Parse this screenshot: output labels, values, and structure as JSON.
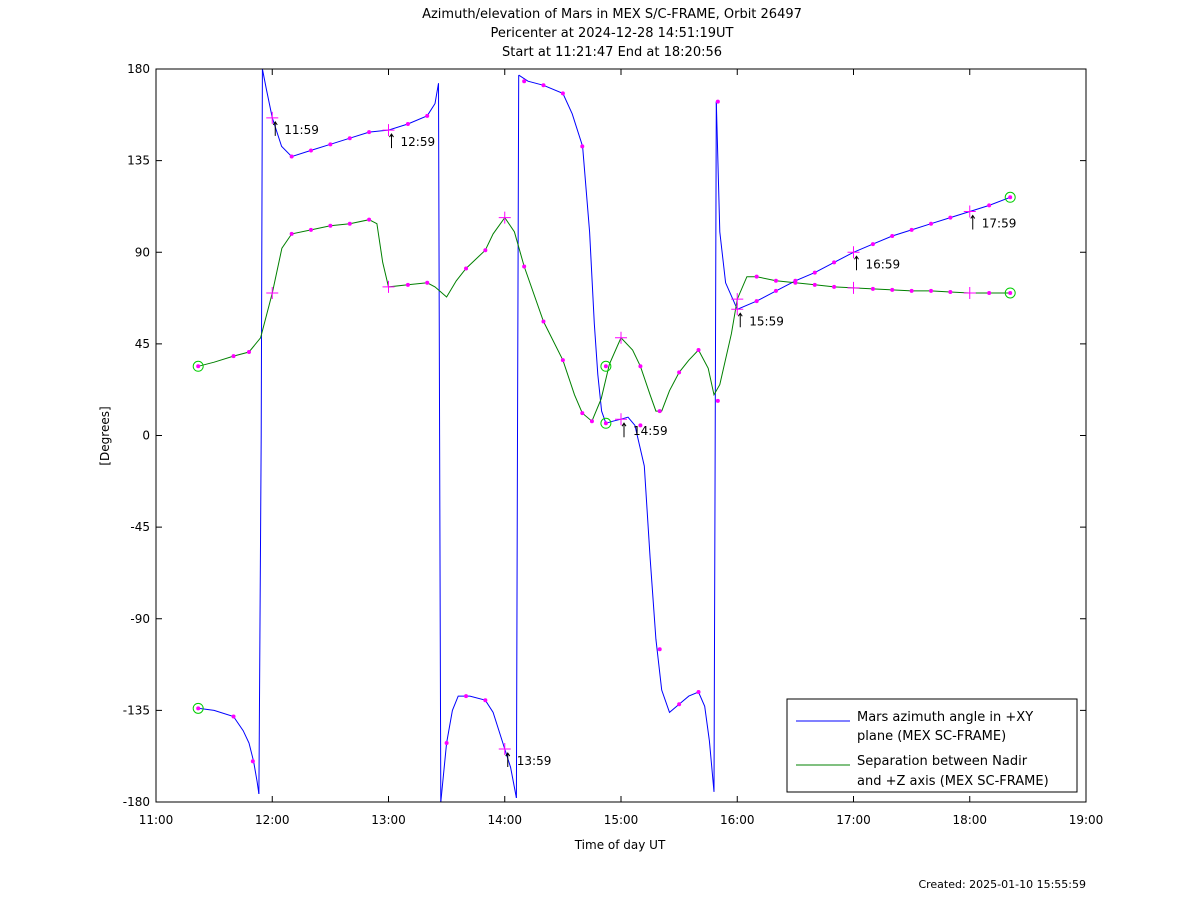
{
  "chart_data": {
    "type": "line",
    "title": "Azimuth/elevation of Mars in MEX S/C-FRAME,  Orbit 26497",
    "subtitle1": "Pericenter at 2024-12-28 14:51:19UT",
    "subtitle2": "Start at 11:21:47 End at 18:20:56",
    "xlabel": "Time of day UT",
    "ylabel": "[Degrees]",
    "xlim": [
      11,
      19
    ],
    "ylim": [
      -180,
      180
    ],
    "xticks": [
      11,
      12,
      13,
      14,
      15,
      16,
      17,
      18,
      19
    ],
    "xtick_labels": [
      "11:00",
      "12:00",
      "13:00",
      "14:00",
      "15:00",
      "16:00",
      "17:00",
      "18:00",
      "19:00"
    ],
    "yticks": [
      180,
      135,
      90,
      45,
      0,
      -45,
      -90,
      -135,
      -180
    ],
    "ytick_labels": [
      "180",
      "135",
      "90",
      "45",
      "0",
      "-45",
      "-90",
      "-135",
      "-180"
    ],
    "grid": false,
    "legend_position": "bottom-right",
    "series": [
      {
        "name": "Mars azimuth angle in +XY plane (MEX SC-FRAME)",
        "legend_line1": "Mars azimuth angle in +XY",
        "legend_line2": "plane (MEX SC-FRAME)",
        "color": "#0000ff",
        "segments": [
          [
            [
              11.363,
              -134
            ],
            [
              11.5,
              -135
            ],
            [
              11.667,
              -138
            ],
            [
              11.75,
              -145
            ],
            [
              11.8,
              -151
            ],
            [
              11.84,
              -160
            ],
            [
              11.87,
              -170
            ],
            [
              11.885,
              -176
            ]
          ],
          [
            [
              11.885,
              -176
            ],
            [
              11.905,
              0
            ],
            [
              11.915,
              180
            ]
          ],
          [
            [
              11.915,
              180
            ],
            [
              11.95,
              170
            ],
            [
              12.0,
              156
            ],
            [
              12.08,
              142
            ],
            [
              12.167,
              137
            ],
            [
              12.333,
              140
            ],
            [
              12.5,
              143
            ],
            [
              12.667,
              146
            ],
            [
              12.833,
              149
            ],
            [
              13.0,
              150
            ],
            [
              13.167,
              153
            ],
            [
              13.333,
              157
            ],
            [
              13.4,
              163
            ],
            [
              13.43,
              173
            ]
          ],
          [
            [
              13.43,
              173
            ],
            [
              13.44,
              0
            ],
            [
              13.45,
              -180
            ]
          ],
          [
            [
              13.45,
              -180
            ],
            [
              13.5,
              -151
            ],
            [
              13.55,
              -135
            ],
            [
              13.6,
              -128
            ],
            [
              13.7,
              -128
            ],
            [
              13.833,
              -130
            ],
            [
              13.9,
              -136
            ],
            [
              14.0,
              -154
            ],
            [
              14.05,
              -163
            ],
            [
              14.1,
              -178
            ]
          ],
          [
            [
              14.1,
              -178
            ],
            [
              14.11,
              0
            ],
            [
              14.12,
              177
            ]
          ],
          [
            [
              14.12,
              177
            ],
            [
              14.2,
              174
            ],
            [
              14.333,
              172
            ],
            [
              14.5,
              168
            ],
            [
              14.58,
              158
            ],
            [
              14.67,
              142
            ],
            [
              14.73,
              100
            ],
            [
              14.77,
              55
            ],
            [
              14.8,
              30
            ],
            [
              14.833,
              12
            ],
            [
              14.87,
              6
            ],
            [
              14.93,
              7
            ],
            [
              15.0,
              8
            ],
            [
              15.06,
              9
            ],
            [
              15.12,
              5
            ],
            [
              15.2,
              -15
            ],
            [
              15.25,
              -60
            ],
            [
              15.3,
              -100
            ],
            [
              15.35,
              -125
            ],
            [
              15.417,
              -136
            ],
            [
              15.5,
              -132
            ],
            [
              15.583,
              -128
            ],
            [
              15.667,
              -126
            ],
            [
              15.72,
              -133
            ],
            [
              15.76,
              -150
            ],
            [
              15.8,
              -175
            ]
          ],
          [
            [
              15.8,
              -175
            ],
            [
              15.81,
              0
            ],
            [
              15.82,
              164
            ]
          ],
          [
            [
              15.82,
              164
            ],
            [
              15.85,
              100
            ],
            [
              15.9,
              75
            ],
            [
              16.0,
              62
            ],
            [
              16.167,
              66
            ],
            [
              16.333,
              71
            ],
            [
              16.5,
              76
            ],
            [
              16.667,
              80
            ],
            [
              16.833,
              85
            ],
            [
              17.0,
              90
            ],
            [
              17.167,
              94
            ],
            [
              17.333,
              98
            ],
            [
              17.5,
              101
            ],
            [
              17.667,
              104
            ],
            [
              17.833,
              107
            ],
            [
              18.0,
              110
            ],
            [
              18.167,
              113
            ],
            [
              18.348,
              117
            ]
          ]
        ]
      },
      {
        "name": "Separation between Nadir and +Z axis (MEX SC-FRAME)",
        "legend_line1": "Separation between Nadir",
        "legend_line2": "and +Z axis (MEX SC-FRAME)",
        "color": "#008000",
        "segments": [
          [
            [
              11.363,
              34
            ],
            [
              11.5,
              36
            ],
            [
              11.667,
              39
            ],
            [
              11.8,
              41
            ],
            [
              11.9,
              48
            ],
            [
              12.0,
              70
            ],
            [
              12.083,
              92
            ],
            [
              12.167,
              99
            ],
            [
              12.333,
              101
            ],
            [
              12.5,
              103
            ],
            [
              12.667,
              104
            ],
            [
              12.833,
              106
            ],
            [
              12.9,
              104
            ],
            [
              12.95,
              85
            ],
            [
              13.0,
              73
            ],
            [
              13.167,
              74
            ],
            [
              13.333,
              75
            ],
            [
              13.4,
              73
            ],
            [
              13.5,
              68
            ],
            [
              13.583,
              76
            ],
            [
              13.667,
              82
            ],
            [
              13.833,
              91
            ],
            [
              13.9,
              99
            ],
            [
              14.0,
              107
            ],
            [
              14.083,
              100
            ],
            [
              14.167,
              83
            ],
            [
              14.333,
              56
            ],
            [
              14.5,
              37
            ],
            [
              14.6,
              20
            ],
            [
              14.667,
              11
            ],
            [
              14.75,
              7
            ],
            [
              14.83,
              18
            ],
            [
              14.9,
              35
            ],
            [
              15.0,
              48
            ],
            [
              15.1,
              42
            ],
            [
              15.167,
              34
            ],
            [
              15.25,
              20
            ],
            [
              15.3,
              12
            ],
            [
              15.35,
              12
            ],
            [
              15.417,
              22
            ],
            [
              15.5,
              31
            ],
            [
              15.583,
              37
            ],
            [
              15.667,
              42
            ],
            [
              15.75,
              33
            ],
            [
              15.8,
              20
            ],
            [
              15.85,
              25
            ],
            [
              15.95,
              50
            ],
            [
              16.0,
              67
            ],
            [
              16.083,
              78
            ],
            [
              16.167,
              78
            ],
            [
              16.333,
              76
            ],
            [
              16.5,
              75
            ],
            [
              16.667,
              74
            ],
            [
              16.833,
              73
            ],
            [
              17.0,
              72.5
            ],
            [
              17.167,
              72
            ],
            [
              17.333,
              71.5
            ],
            [
              17.5,
              71
            ],
            [
              17.667,
              71
            ],
            [
              17.833,
              70.5
            ],
            [
              18.0,
              70
            ],
            [
              18.167,
              70
            ],
            [
              18.348,
              70
            ]
          ]
        ]
      }
    ],
    "markers": {
      "color": "#ff00ff",
      "dots": [
        [
          11.667,
          39
        ],
        [
          11.8,
          41
        ],
        [
          12.167,
          99
        ],
        [
          12.333,
          101
        ],
        [
          12.5,
          103
        ],
        [
          12.667,
          104
        ],
        [
          12.833,
          106
        ],
        [
          13.167,
          74
        ],
        [
          13.333,
          75
        ],
        [
          13.667,
          82
        ],
        [
          13.833,
          91
        ],
        [
          14.167,
          83
        ],
        [
          14.333,
          56
        ],
        [
          14.5,
          37
        ],
        [
          14.667,
          11
        ],
        [
          14.75,
          7
        ],
        [
          15.167,
          34
        ],
        [
          15.333,
          12
        ],
        [
          15.5,
          31
        ],
        [
          15.667,
          42
        ],
        [
          15.833,
          17
        ],
        [
          16.167,
          78
        ],
        [
          16.333,
          76
        ],
        [
          16.5,
          75
        ],
        [
          16.667,
          74
        ],
        [
          16.833,
          73
        ],
        [
          17.167,
          72
        ],
        [
          17.333,
          71.5
        ],
        [
          17.5,
          71
        ],
        [
          17.667,
          71
        ],
        [
          17.833,
          70.5
        ],
        [
          18.167,
          70
        ],
        [
          11.667,
          -138
        ],
        [
          11.833,
          -160
        ],
        [
          12.167,
          137
        ],
        [
          12.333,
          140
        ],
        [
          12.5,
          143
        ],
        [
          12.667,
          146
        ],
        [
          12.833,
          149
        ],
        [
          13.167,
          153
        ],
        [
          13.333,
          157
        ],
        [
          13.5,
          -151
        ],
        [
          13.667,
          -128
        ],
        [
          13.833,
          -130
        ],
        [
          14.333,
          172
        ],
        [
          14.5,
          168
        ],
        [
          14.667,
          142
        ],
        [
          15.167,
          5
        ],
        [
          15.333,
          -105
        ],
        [
          15.5,
          -132
        ],
        [
          15.667,
          -126
        ],
        [
          15.833,
          164
        ],
        [
          16.167,
          66
        ],
        [
          16.333,
          71
        ],
        [
          16.5,
          76
        ],
        [
          16.667,
          80
        ],
        [
          16.833,
          85
        ],
        [
          17.167,
          94
        ],
        [
          17.333,
          98
        ],
        [
          17.5,
          101
        ],
        [
          17.667,
          104
        ],
        [
          17.833,
          107
        ],
        [
          18.167,
          113
        ],
        [
          14.167,
          174
        ]
      ],
      "crosses": [
        [
          12.0,
          156
        ],
        [
          13.0,
          150
        ],
        [
          14.0,
          -154
        ],
        [
          15.0,
          8
        ],
        [
          16.0,
          62
        ],
        [
          17.0,
          90
        ],
        [
          18.0,
          110
        ],
        [
          12.0,
          70
        ],
        [
          13.0,
          73
        ],
        [
          14.0,
          107
        ],
        [
          15.0,
          48
        ],
        [
          16.0,
          67
        ],
        [
          17.0,
          72.5
        ],
        [
          18.0,
          70
        ]
      ],
      "circles_color": "#00cc00",
      "circles": [
        [
          11.363,
          34
        ],
        [
          11.363,
          -134
        ],
        [
          14.87,
          6
        ],
        [
          14.87,
          34
        ],
        [
          18.348,
          117
        ],
        [
          18.348,
          70
        ]
      ]
    },
    "annotations": [
      {
        "text": "11:59",
        "x": 12.0,
        "y": 156
      },
      {
        "text": "12:59",
        "x": 13.0,
        "y": 150
      },
      {
        "text": "13:59",
        "x": 14.0,
        "y": -154
      },
      {
        "text": "14:59",
        "x": 15.0,
        "y": 8
      },
      {
        "text": "15:59",
        "x": 16.0,
        "y": 62
      },
      {
        "text": "16:59",
        "x": 17.0,
        "y": 90
      },
      {
        "text": "17:59",
        "x": 18.0,
        "y": 110
      }
    ]
  },
  "footer": {
    "created": "Created: 2025-01-10 15:55:59"
  }
}
